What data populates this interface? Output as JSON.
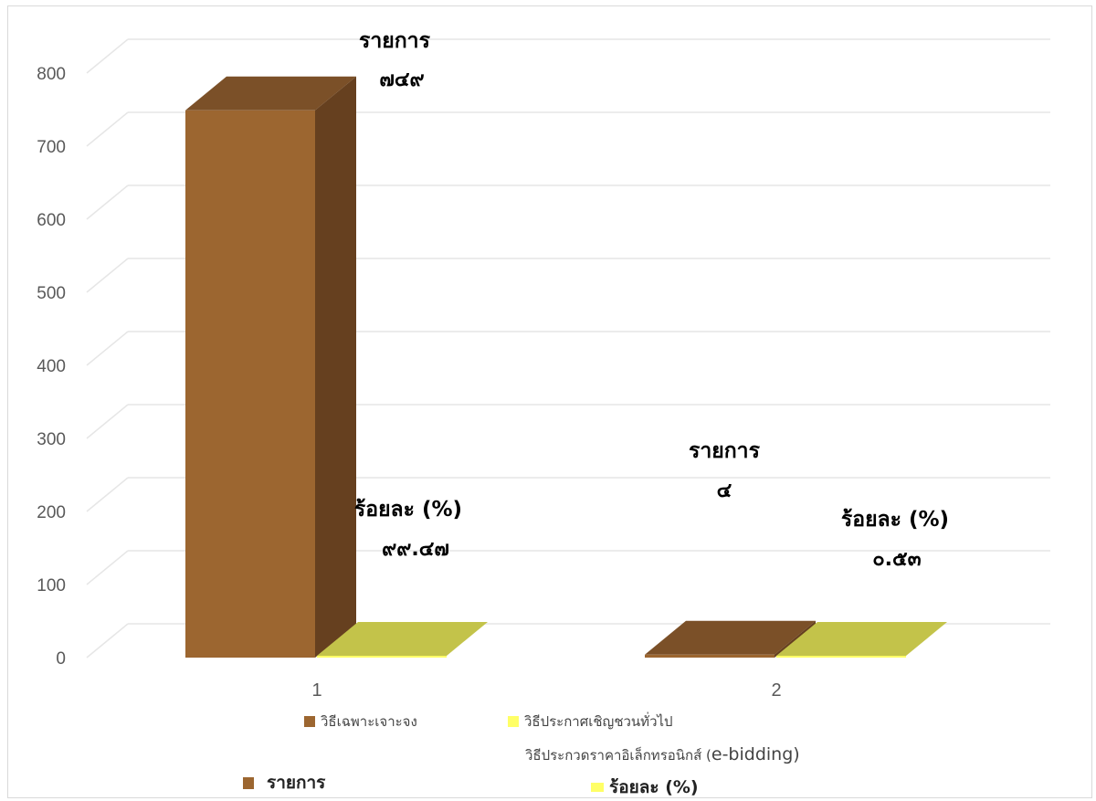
{
  "chart_data": {
    "type": "bar",
    "categories": [
      "1",
      "2"
    ],
    "series": [
      {
        "name": "วิธีเฉพาะเจาะจง",
        "values": [
          749,
          4
        ]
      },
      {
        "name": "วิธีประกาศเชิญชวนทั่วไป วิธีประกวดราคาอิเล็กทรอนิกส์ (e-bidding)",
        "values": [
          0,
          0
        ]
      }
    ],
    "ylim": [
      0,
      800
    ],
    "yticks": [
      "0",
      "100",
      "200",
      "300",
      "400",
      "500",
      "600",
      "700",
      "800"
    ],
    "grid": true,
    "style": "3d",
    "data_labels": [
      {
        "head": "รายการ",
        "value": "๗๔๙"
      },
      {
        "head": "ร้อยละ (%)",
        "value": "๙๙.๔๗"
      },
      {
        "head": "รายการ",
        "value": "๔"
      },
      {
        "head": "ร้อยละ (%)",
        "value": "๐.๕๓"
      }
    ],
    "colors": {
      "series1": "#9c6630",
      "series2": "#ffff66",
      "grid": "#e6e6e6",
      "axis_text": "#595959"
    }
  },
  "legend": {
    "item_a": "วิธีเฉพาะเจาะจง",
    "item_b_line1": "วิธีประกาศเชิญชวนทั่วไป",
    "item_b_line2_th": "วิธีประกวดราคาอิเล็กทรอนิกส์ (",
    "item_b_line2_en": "e-bidding)",
    "item_c": "รายการ",
    "item_d": "ร้อยละ (%)"
  }
}
